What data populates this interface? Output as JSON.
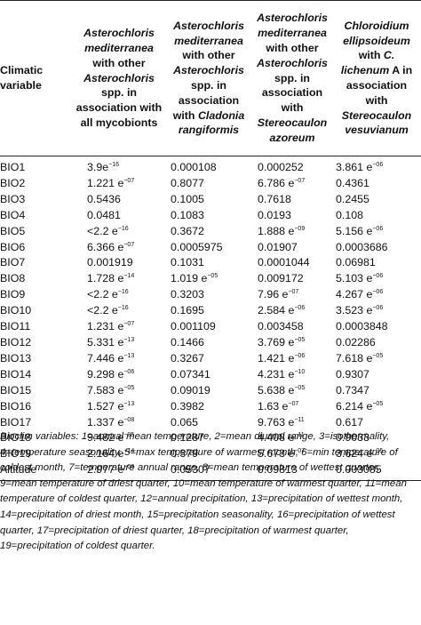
{
  "header": {
    "variable_label": "Climatic variable",
    "columns": [
      [
        "Asterochloris mediterranea",
        " with other ",
        "Asterochloris",
        " spp. in association with all mycobionts"
      ],
      [
        "Asterochloris mediterranea",
        " with other ",
        "Asterochloris",
        " spp. in association with ",
        "Cladonia rangiformis"
      ],
      [
        "Asterochloris mediterranea",
        " with other ",
        "Asterochloris",
        " spp. in association with ",
        "Stereocaulon azoreum"
      ],
      [
        "Chloroidium ellipsoideum",
        " with ",
        "C. lichenum",
        " A in association with ",
        "Stereocaulon vesuvianum"
      ]
    ]
  },
  "rows": [
    {
      "name": "BIO1",
      "values": [
        [
          "3.9e",
          "−16"
        ],
        [
          "0.000108",
          ""
        ],
        [
          "0.000252",
          ""
        ],
        [
          "3.861 e",
          "−06"
        ]
      ]
    },
    {
      "name": "BIO2",
      "values": [
        [
          "1.221 e",
          "−07"
        ],
        [
          "0.8077",
          ""
        ],
        [
          "6.786 e",
          "−07"
        ],
        [
          "0.4361",
          ""
        ]
      ]
    },
    {
      "name": "BIO3",
      "values": [
        [
          "0.5436",
          ""
        ],
        [
          "0.1005",
          ""
        ],
        [
          "0.7618",
          ""
        ],
        [
          "0.2455",
          ""
        ]
      ]
    },
    {
      "name": "BIO4",
      "values": [
        [
          "0.0481",
          ""
        ],
        [
          "0.1083",
          ""
        ],
        [
          "0.0193",
          ""
        ],
        [
          "0.108",
          ""
        ]
      ]
    },
    {
      "name": "BIO5",
      "values": [
        [
          "<2.2 e",
          "−16"
        ],
        [
          "0.3672",
          ""
        ],
        [
          "1.888 e",
          "−09"
        ],
        [
          "5.156 e",
          "−06"
        ]
      ]
    },
    {
      "name": "BIO6",
      "values": [
        [
          "6.366 e",
          "−07"
        ],
        [
          "0.0005975",
          ""
        ],
        [
          "0.01907",
          ""
        ],
        [
          "0.0003686",
          ""
        ]
      ]
    },
    {
      "name": "BIO7",
      "values": [
        [
          "0.001919",
          ""
        ],
        [
          "0.1031",
          ""
        ],
        [
          "0.0001044",
          ""
        ],
        [
          "0.06981",
          ""
        ]
      ]
    },
    {
      "name": "BIO8",
      "values": [
        [
          "1.728 e",
          "−14"
        ],
        [
          "1.019 e",
          "−05"
        ],
        [
          "0.009172",
          ""
        ],
        [
          "5.103 e",
          "−06"
        ]
      ]
    },
    {
      "name": "BIO9",
      "values": [
        [
          "<2.2 e",
          "−16"
        ],
        [
          "0.3203",
          ""
        ],
        [
          "7.96 e",
          "−07"
        ],
        [
          "4.267 e",
          "−06"
        ]
      ]
    },
    {
      "name": "BIO10",
      "values": [
        [
          "<2.2 e",
          "−16"
        ],
        [
          "0.1695",
          ""
        ],
        [
          "2.584 e",
          "−06"
        ],
        [
          "3.523 e",
          "−06"
        ]
      ]
    },
    {
      "name": "BIO11",
      "values": [
        [
          "1.231 e",
          "−07"
        ],
        [
          "0.001109",
          ""
        ],
        [
          "0.003458",
          ""
        ],
        [
          "0.0003848",
          ""
        ]
      ]
    },
    {
      "name": "BIO12",
      "values": [
        [
          "5.331 e",
          "−13"
        ],
        [
          "0.1466",
          ""
        ],
        [
          "3.769 e",
          "−05"
        ],
        [
          "0.02286",
          ""
        ]
      ]
    },
    {
      "name": "BIO13",
      "values": [
        [
          "7.446 e",
          "−13"
        ],
        [
          "0.3267",
          ""
        ],
        [
          "1.421 e",
          "−06"
        ],
        [
          "7.618 e",
          "−05"
        ]
      ]
    },
    {
      "name": "BIO14",
      "values": [
        [
          "9.298 e",
          "−06"
        ],
        [
          "0.07341",
          ""
        ],
        [
          "4.231 e",
          "−10"
        ],
        [
          "0.9307",
          ""
        ]
      ]
    },
    {
      "name": "BIO15",
      "values": [
        [
          "7.583 e",
          "−05"
        ],
        [
          "0.09019",
          ""
        ],
        [
          "5.638 e",
          "−05"
        ],
        [
          "0.7347",
          ""
        ]
      ]
    },
    {
      "name": "BIO16",
      "values": [
        [
          "1.527 e",
          "−13"
        ],
        [
          "0.3982",
          ""
        ],
        [
          "1.63 e",
          "−07"
        ],
        [
          "6.214 e",
          "−05"
        ]
      ]
    },
    {
      "name": "BIO17",
      "values": [
        [
          "1.337 e",
          "−08"
        ],
        [
          "0.065",
          ""
        ],
        [
          "9.763 e",
          "−11"
        ],
        [
          "0.617",
          ""
        ]
      ]
    },
    {
      "name": "BIO18",
      "values": [
        [
          "9.482 e",
          "−05"
        ],
        [
          "0.1287",
          ""
        ],
        [
          "4.408 e",
          "−11"
        ],
        [
          "0.9033",
          ""
        ]
      ]
    },
    {
      "name": "BIO19",
      "values": [
        [
          "2.164 e",
          "−14"
        ],
        [
          "0.379",
          ""
        ],
        [
          "5.673 e",
          "−07"
        ],
        [
          "3.624 e",
          "−05"
        ]
      ]
    },
    {
      "name": "Altitude",
      "values": [
        [
          "2.977 e",
          "−08"
        ],
        [
          "0.05307",
          ""
        ],
        [
          "0.09813",
          ""
        ],
        [
          "0.003085",
          ""
        ]
      ]
    }
  ],
  "footnote": [
    [
      "Bioclim variables: 1",
      false
    ],
    [
      "=",
      true
    ],
    [
      "annual mean temperature, 2",
      false
    ],
    [
      "=",
      true
    ],
    [
      "mean diurnal range,",
      false
    ],
    [
      " 3",
      false
    ],
    [
      "=",
      true
    ],
    [
      "isothermality, 4",
      false
    ],
    [
      "=",
      true
    ],
    [
      "temperature seasonality, 5",
      false
    ],
    [
      "=",
      true
    ],
    [
      "max temperature of warmest month,",
      false
    ],
    [
      " 6",
      false
    ],
    [
      "=",
      true
    ],
    [
      "min temperature of coldest month, 7",
      false
    ],
    [
      "=",
      true
    ],
    [
      "temperature annual range, 8",
      false
    ],
    [
      "=",
      true
    ],
    [
      "mean temperature of wettest quarter, 9",
      false
    ],
    [
      "=",
      true
    ],
    [
      "mean temperature of driest quarter, 10",
      false
    ],
    [
      "=",
      true
    ],
    [
      "mean temperature of warmest quarter, 11",
      false
    ],
    [
      "=",
      true
    ],
    [
      "mean temperature of coldest quarter, 12",
      false
    ],
    [
      "=",
      true
    ],
    [
      "annual precipitation, 13",
      false
    ],
    [
      "=",
      true
    ],
    [
      "precipitation of wettest month, 14",
      false
    ],
    [
      "=",
      true
    ],
    [
      "precipitation of driest month, 15",
      false
    ],
    [
      "=",
      true
    ],
    [
      "precipitation seasonality, 16",
      false
    ],
    [
      "=",
      true
    ],
    [
      "precipitation of wettest quarter, 17",
      false
    ],
    [
      "=",
      true
    ],
    [
      "precipitation of driest quarter, 18",
      false
    ],
    [
      "=",
      true
    ],
    [
      "precipitation of warmest quarter, 19",
      false
    ],
    [
      "=",
      true
    ],
    [
      "precipitation of coldest quarter.",
      false
    ]
  ]
}
